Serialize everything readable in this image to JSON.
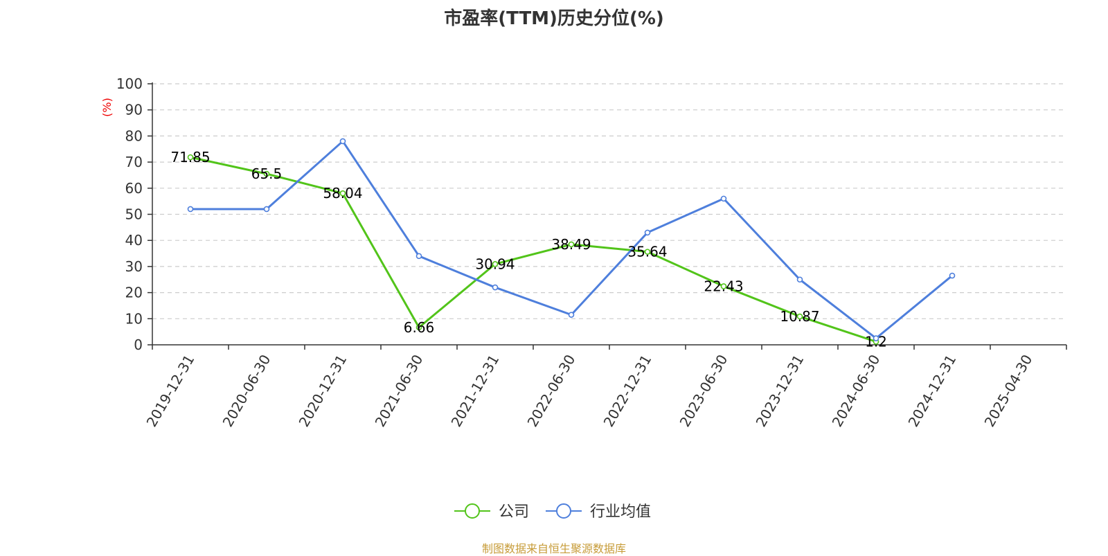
{
  "title": "市盈率(TTM)历史分位(%)",
  "footer": "制图数据来自恒生聚源数据库",
  "chart_data": {
    "type": "line",
    "title": "市盈率(TTM)历史分位(%)",
    "ylabel": "(%)",
    "ylim": [
      0,
      100
    ],
    "yticks": [
      0,
      10,
      20,
      30,
      40,
      50,
      60,
      70,
      80,
      90,
      100
    ],
    "grid": true,
    "legend_position": "bottom",
    "categories": [
      "2019-12-31",
      "2020-06-30",
      "2020-12-31",
      "2021-06-30",
      "2021-12-31",
      "2022-06-30",
      "2022-12-31",
      "2023-06-30",
      "2023-12-31",
      "2024-06-30",
      "2024-12-31",
      "2025-04-30"
    ],
    "series": [
      {
        "name": "公司",
        "color": "#52c41a",
        "values": [
          71.85,
          65.5,
          58.04,
          6.66,
          30.94,
          38.49,
          35.64,
          22.43,
          10.87,
          1.2,
          null,
          null
        ],
        "labels": [
          "71.85",
          "65.5",
          "58.04",
          "6.66",
          "30.94",
          "38.49",
          "35.64",
          "22.43",
          "10.87",
          "1.2",
          "",
          ""
        ]
      },
      {
        "name": "行业均值",
        "color": "#4e7fdc",
        "values": [
          52,
          52,
          78,
          34,
          22,
          11.5,
          43,
          56,
          25,
          2.5,
          26.5,
          null
        ]
      }
    ]
  }
}
